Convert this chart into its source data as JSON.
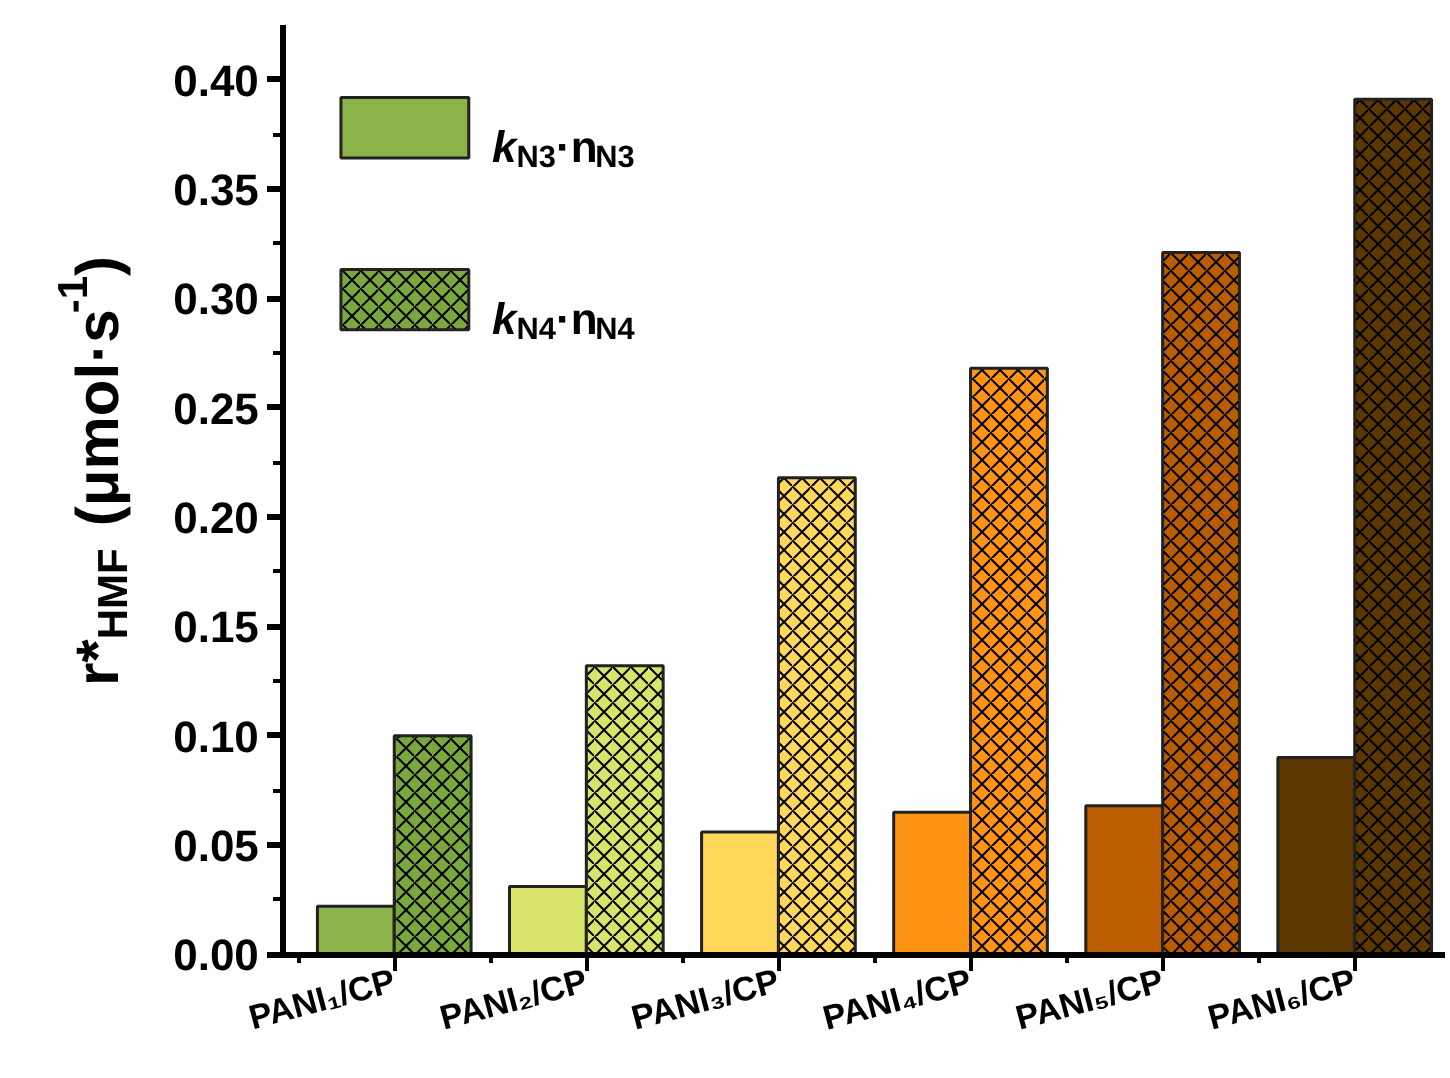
{
  "chart_data": {
    "type": "bar",
    "categories": [
      "PANI₁/CP",
      "PANI₂/CP",
      "PANI₃/CP",
      "PANI₄/CP",
      "PANI₅/CP",
      "PANI₆/CP"
    ],
    "series": [
      {
        "name": "k$_{N3}$·n$_{N3}$",
        "color": "#8ab34a",
        "colors": [
          "#8ab34a",
          "#d8e56a",
          "#ffd75a",
          "#ff9314",
          "#bb5c00",
          "#5c3800"
        ],
        "values": [
          0.022,
          0.031,
          0.056,
          0.065,
          0.068,
          0.09
        ]
      },
      {
        "name": "k$_{N4}$·n$_{N4}$",
        "color": "#7aa83e",
        "colors": [
          "#7aa83e",
          "#d8e56a",
          "#ffd75a",
          "#ff9314",
          "#bb5c00",
          "#5c3800"
        ],
        "values": [
          0.1,
          0.132,
          0.218,
          0.268,
          0.321,
          0.391
        ]
      }
    ],
    "ylabel": "r*$_{HMF}$ (μmol·s$^{-1}$)",
    "ylim": [
      0,
      0.425
    ],
    "yticks": [
      {
        "value": 0,
        "label": "0.00"
      },
      0.05,
      {
        "value": 0.1,
        "label": "0.10"
      },
      0.15,
      {
        "value": 0.2,
        "label": "0.20"
      },
      0.25,
      {
        "value": 0.3,
        "label": "0.30"
      },
      0.35,
      {
        "value": 0.4,
        "label": "0.40"
      }
    ],
    "grid": false,
    "legend": "top left"
  }
}
